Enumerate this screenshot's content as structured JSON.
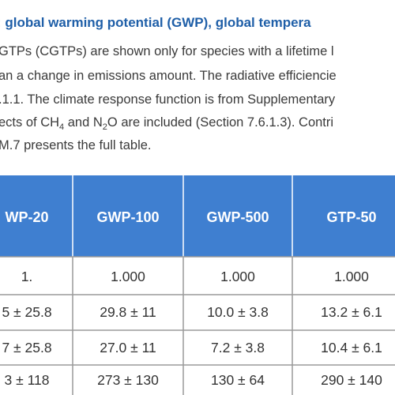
{
  "caption": {
    "title": ": global warming potential (GWP), global tempera",
    "lines": [
      [
        "GTPs (CGTPs) are shown only for species with a lifetime l"
      ],
      [
        "an a change in emissions amount. The radiative efficiencie"
      ],
      [
        ".1.1. The climate response function is from Supplementary"
      ],
      [
        "ects of CH",
        "4",
        " and N",
        "2",
        "O are included (Section 7.6.1.3). Contri"
      ],
      [
        "M.7 presents the full table."
      ]
    ]
  },
  "table": {
    "header": [
      "WP-20",
      "GWP-100",
      "GWP-500",
      "GTP-50"
    ],
    "rows": [
      [
        "1.",
        "1.000",
        "1.000",
        "1.000"
      ],
      [
        "5 ± 25.8",
        "29.8 ± 11",
        "10.0 ± 3.8",
        "13.2 ± 6.1"
      ],
      [
        "7 ± 25.8",
        "27.0 ± 11",
        "7.2 ± 3.8",
        "10.4 ± 6.1"
      ],
      [
        "3 ± 118",
        "273 ± 130",
        "130 ± 64",
        "290 ± 140"
      ]
    ]
  }
}
